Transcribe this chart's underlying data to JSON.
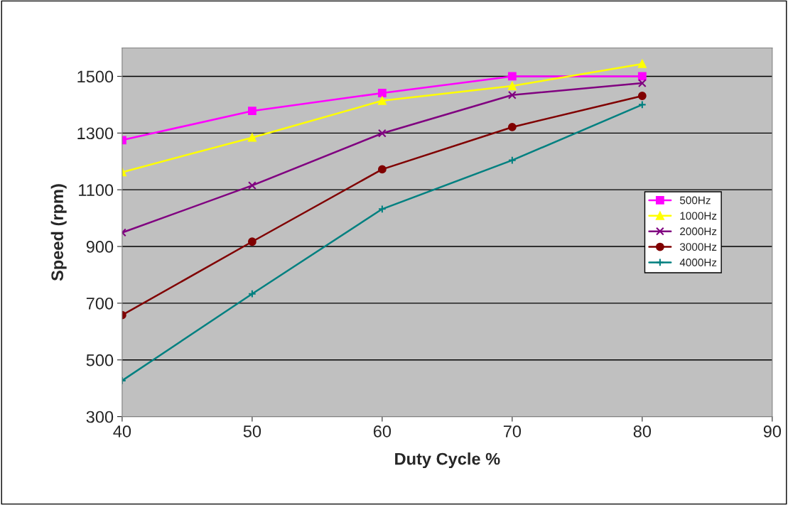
{
  "chart_data": {
    "type": "line",
    "xlabel": "Duty Cycle %",
    "ylabel": "Speed (rpm)",
    "x": [
      40,
      50,
      60,
      70,
      80
    ],
    "series": [
      {
        "name": "500Hz",
        "color": "#ff00ff",
        "marker": "square",
        "values": [
          1275,
          1378,
          1441,
          1500,
          1500
        ]
      },
      {
        "name": "1000Hz",
        "color": "#ffff00",
        "marker": "triangle",
        "values": [
          1162,
          1284,
          1414,
          1466,
          1544
        ]
      },
      {
        "name": "2000Hz",
        "color": "#800080",
        "marker": "cross",
        "values": [
          949,
          1115,
          1299,
          1434,
          1476
        ]
      },
      {
        "name": "3000Hz",
        "color": "#800000",
        "marker": "circle",
        "values": [
          658,
          917,
          1172,
          1321,
          1431
        ]
      },
      {
        "name": "4000Hz",
        "color": "#008080",
        "marker": "plus",
        "values": [
          427,
          733,
          1032,
          1204,
          1400
        ]
      }
    ],
    "xlim": [
      40,
      90
    ],
    "xticks": [
      40,
      50,
      60,
      70,
      80,
      90
    ],
    "ylim": [
      300,
      1600
    ],
    "yticks": [
      300,
      500,
      700,
      900,
      1100,
      1300,
      1500
    ],
    "grid": "y",
    "legend": "center right",
    "line_style": "solid"
  }
}
